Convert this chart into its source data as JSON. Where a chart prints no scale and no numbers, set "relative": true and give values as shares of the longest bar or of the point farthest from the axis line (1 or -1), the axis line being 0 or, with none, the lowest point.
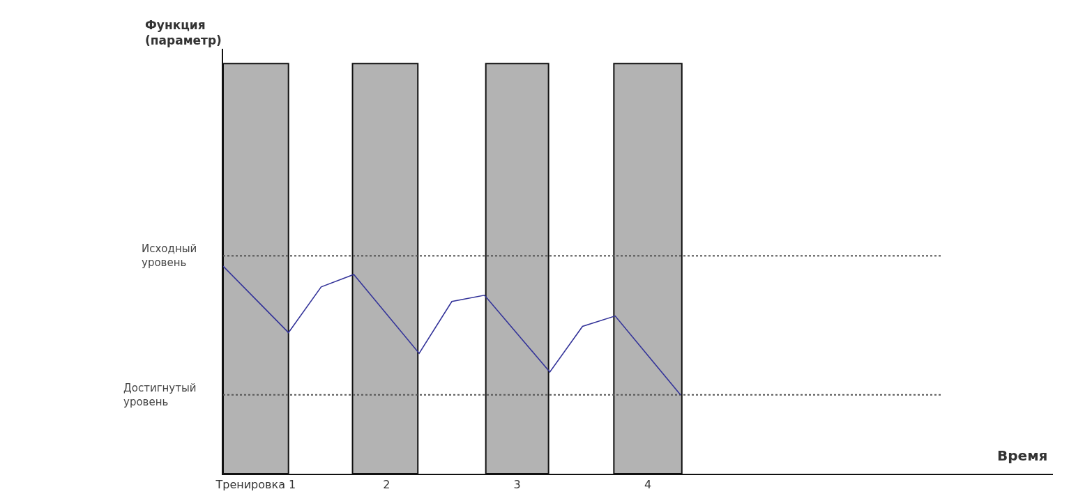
{
  "chart_data": {
    "type": "line",
    "relative": true,
    "xlabel": "Время",
    "annotations": [
      "Функция (параметр)"
    ],
    "x": [
      0.75,
      1.25,
      1.5,
      1.75,
      2.25,
      2.5,
      2.75,
      3.25,
      3.5,
      3.75,
      4.25
    ],
    "series": [
      {
        "color": "#333399",
        "values": [
          1,
          0.68,
          0.9,
          0.96,
          0.58,
          0.83,
          0.86,
          0.49,
          0.71,
          0.76,
          0.38
        ]
      }
    ],
    "xlim": [
      0.75,
      7.1
    ],
    "xticks": [
      {
        "value": 1,
        "label": "Тренировка 1"
      },
      {
        "value": 2,
        "label": "2"
      },
      {
        "value": 3,
        "label": "3"
      },
      {
        "value": 4,
        "label": "4"
      }
    ],
    "ref_lines": [
      {
        "axis": "y",
        "value": 1.05,
        "label": "Исходный уровень",
        "color": "#555555",
        "line_style": "dotted"
      },
      {
        "axis": "y",
        "value": 0.38,
        "label": "Достигнутый уровень",
        "color": "#555555",
        "line_style": "dotted"
      }
    ],
    "bands": [
      {
        "axis": "x",
        "from": 0.75,
        "to": 1.25,
        "color": "#b3b3b3"
      },
      {
        "axis": "x",
        "from": 1.74,
        "to": 2.24,
        "color": "#b3b3b3"
      },
      {
        "axis": "x",
        "from": 2.76,
        "to": 3.24,
        "color": "#b3b3b3"
      },
      {
        "axis": "x",
        "from": 3.74,
        "to": 4.26,
        "color": "#b3b3b3"
      }
    ],
    "grid": false,
    "marker": "none",
    "line_style": "solid"
  }
}
